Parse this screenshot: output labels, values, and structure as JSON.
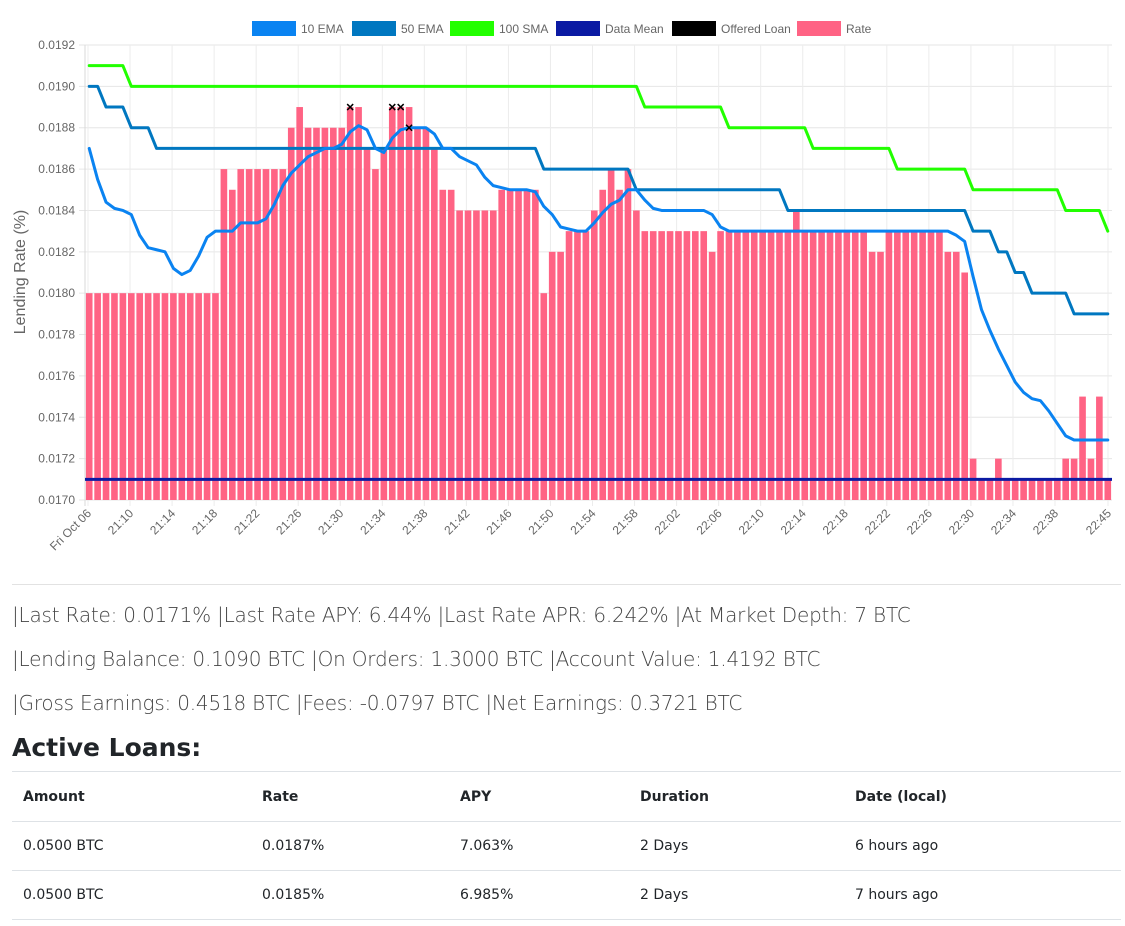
{
  "chart_data": {
    "type": "bar",
    "ylabel": "Lending Rate (%)",
    "ylim": [
      0.017,
      0.0192
    ],
    "yticks": [
      "0.0170",
      "0.0172",
      "0.0174",
      "0.0176",
      "0.0178",
      "0.0180",
      "0.0182",
      "0.0184",
      "0.0186",
      "0.0188",
      "0.0190",
      "0.0192"
    ],
    "x_tick_labels": [
      "Fri Oct 06",
      "21:10",
      "21:14",
      "21:18",
      "21:22",
      "21:26",
      "21:30",
      "21:34",
      "21:38",
      "21:42",
      "21:46",
      "21:50",
      "21:54",
      "21:58",
      "22:02",
      "22:06",
      "22:10",
      "22:14",
      "22:18",
      "22:22",
      "22:26",
      "22:30",
      "22:34",
      "22:38",
      "22:45"
    ],
    "grid": true,
    "legend_placement": "top",
    "legend": [
      {
        "label": "10 EMA",
        "color": "#0a83f1"
      },
      {
        "label": "50 EMA",
        "color": "#0077c0"
      },
      {
        "label": "100 SMA",
        "color": "#22ff00"
      },
      {
        "label": "Data Mean",
        "color": "#0b1aa3"
      },
      {
        "label": "Offered Loan",
        "color": "#000000"
      },
      {
        "label": "Rate",
        "color": "#ff6384"
      }
    ],
    "rate_values": [
      0.018,
      0.018,
      0.018,
      0.018,
      0.018,
      0.018,
      0.018,
      0.018,
      0.018,
      0.018,
      0.018,
      0.018,
      0.018,
      0.018,
      0.018,
      0.018,
      0.0186,
      0.0185,
      0.0186,
      0.0186,
      0.0186,
      0.0186,
      0.0186,
      0.0186,
      0.0188,
      0.0189,
      0.0188,
      0.0188,
      0.0188,
      0.0188,
      0.0188,
      0.0189,
      0.0189,
      0.0187,
      0.0186,
      0.0187,
      0.0189,
      0.0189,
      0.0189,
      0.0188,
      0.0188,
      0.0187,
      0.0185,
      0.0185,
      0.0184,
      0.0184,
      0.0184,
      0.0184,
      0.0184,
      0.0185,
      0.0185,
      0.0185,
      0.0185,
      0.0185,
      0.018,
      0.0182,
      0.0182,
      0.0183,
      0.0183,
      0.0183,
      0.0184,
      0.0185,
      0.0186,
      0.0185,
      0.0186,
      0.0184,
      0.0183,
      0.0183,
      0.0183,
      0.0183,
      0.0183,
      0.0183,
      0.0183,
      0.0183,
      0.0182,
      0.0183,
      0.0183,
      0.0183,
      0.0183,
      0.0183,
      0.0183,
      0.0183,
      0.0183,
      0.0183,
      0.0184,
      0.0183,
      0.0183,
      0.0183,
      0.0183,
      0.0183,
      0.0183,
      0.0183,
      0.0183,
      0.0182,
      0.0182,
      0.0183,
      0.0183,
      0.0183,
      0.0183,
      0.0183,
      0.0183,
      0.0183,
      0.0182,
      0.0182,
      0.0181,
      0.0172,
      0.0171,
      0.0171,
      0.0172,
      0.0171,
      0.0171,
      0.0171,
      0.0171,
      0.0171,
      0.0171,
      0.0171,
      0.0172,
      0.0172,
      0.0175,
      0.0172,
      0.0175,
      0.0171
    ],
    "ema10_values": [
      0.0187,
      0.01855,
      0.01844,
      0.01841,
      0.0184,
      0.01838,
      0.01828,
      0.01822,
      0.01821,
      0.0182,
      0.01812,
      0.01809,
      0.01811,
      0.01818,
      0.01827,
      0.0183,
      0.0183,
      0.0183,
      0.01834,
      0.01834,
      0.01834,
      0.01836,
      0.01843,
      0.01852,
      0.01858,
      0.01862,
      0.01866,
      0.01868,
      0.0187,
      0.0187,
      0.01872,
      0.01878,
      0.01881,
      0.01879,
      0.0187,
      0.01868,
      0.01875,
      0.01879,
      0.0188,
      0.0188,
      0.0188,
      0.01877,
      0.0187,
      0.0187,
      0.01866,
      0.01864,
      0.01862,
      0.01856,
      0.01852,
      0.01851,
      0.0185,
      0.0185,
      0.0185,
      0.01849,
      0.01842,
      0.01838,
      0.01832,
      0.01831,
      0.0183,
      0.0183,
      0.01834,
      0.01839,
      0.01843,
      0.01845,
      0.0185,
      0.0185,
      0.01845,
      0.01841,
      0.0184,
      0.0184,
      0.0184,
      0.0184,
      0.0184,
      0.0184,
      0.01838,
      0.01832,
      0.0183,
      0.0183,
      0.0183,
      0.0183,
      0.0183,
      0.0183,
      0.0183,
      0.0183,
      0.0183,
      0.0183,
      0.0183,
      0.0183,
      0.0183,
      0.0183,
      0.0183,
      0.0183,
      0.0183,
      0.0183,
      0.0183,
      0.0183,
      0.0183,
      0.0183,
      0.0183,
      0.0183,
      0.0183,
      0.0183,
      0.0183,
      0.01828,
      0.01825,
      0.01808,
      0.01792,
      0.01782,
      0.01773,
      0.01765,
      0.01757,
      0.01752,
      0.01749,
      0.01748,
      0.01743,
      0.01737,
      0.01731,
      0.01729,
      0.01729,
      0.01729,
      0.01729,
      0.01729
    ],
    "ema50_values": [
      0.019,
      0.019,
      0.0189,
      0.0189,
      0.0189,
      0.0188,
      0.0188,
      0.0188,
      0.0187,
      0.0187,
      0.0187,
      0.0187,
      0.0187,
      0.0187,
      0.0187,
      0.0187,
      0.0187,
      0.0187,
      0.0187,
      0.0187,
      0.0187,
      0.0187,
      0.0187,
      0.0187,
      0.0187,
      0.0187,
      0.0187,
      0.0187,
      0.0187,
      0.0187,
      0.0187,
      0.0187,
      0.0187,
      0.0187,
      0.0187,
      0.0187,
      0.0187,
      0.0187,
      0.0187,
      0.0187,
      0.0187,
      0.0187,
      0.0187,
      0.0187,
      0.0187,
      0.0187,
      0.0187,
      0.0187,
      0.0187,
      0.0187,
      0.0187,
      0.0187,
      0.0187,
      0.0187,
      0.0186,
      0.0186,
      0.0186,
      0.0186,
      0.0186,
      0.0186,
      0.0186,
      0.0186,
      0.0186,
      0.0186,
      0.0186,
      0.0185,
      0.0185,
      0.0185,
      0.0185,
      0.0185,
      0.0185,
      0.0185,
      0.0185,
      0.0185,
      0.0185,
      0.0185,
      0.0185,
      0.0185,
      0.0185,
      0.0185,
      0.0185,
      0.0185,
      0.0185,
      0.0184,
      0.0184,
      0.0184,
      0.0184,
      0.0184,
      0.0184,
      0.0184,
      0.0184,
      0.0184,
      0.0184,
      0.0184,
      0.0184,
      0.0184,
      0.0184,
      0.0184,
      0.0184,
      0.0184,
      0.0184,
      0.0184,
      0.0184,
      0.0184,
      0.0184,
      0.0183,
      0.0183,
      0.0183,
      0.0182,
      0.0182,
      0.0181,
      0.0181,
      0.018,
      0.018,
      0.018,
      0.018,
      0.018,
      0.0179,
      0.0179,
      0.0179,
      0.0179,
      0.0179
    ],
    "sma100_values": [
      0.0191,
      0.0191,
      0.0191,
      0.0191,
      0.0191,
      0.019,
      0.019,
      0.019,
      0.019,
      0.019,
      0.019,
      0.019,
      0.019,
      0.019,
      0.019,
      0.019,
      0.019,
      0.019,
      0.019,
      0.019,
      0.019,
      0.019,
      0.019,
      0.019,
      0.019,
      0.019,
      0.019,
      0.019,
      0.019,
      0.019,
      0.019,
      0.019,
      0.019,
      0.019,
      0.019,
      0.019,
      0.019,
      0.019,
      0.019,
      0.019,
      0.019,
      0.019,
      0.019,
      0.019,
      0.019,
      0.019,
      0.019,
      0.019,
      0.019,
      0.019,
      0.019,
      0.019,
      0.019,
      0.019,
      0.019,
      0.019,
      0.019,
      0.019,
      0.019,
      0.019,
      0.019,
      0.019,
      0.019,
      0.019,
      0.019,
      0.019,
      0.0189,
      0.0189,
      0.0189,
      0.0189,
      0.0189,
      0.0189,
      0.0189,
      0.0189,
      0.0189,
      0.0189,
      0.0188,
      0.0188,
      0.0188,
      0.0188,
      0.0188,
      0.0188,
      0.0188,
      0.0188,
      0.0188,
      0.0188,
      0.0187,
      0.0187,
      0.0187,
      0.0187,
      0.0187,
      0.0187,
      0.0187,
      0.0187,
      0.0187,
      0.0187,
      0.0186,
      0.0186,
      0.0186,
      0.0186,
      0.0186,
      0.0186,
      0.0186,
      0.0186,
      0.0186,
      0.0185,
      0.0185,
      0.0185,
      0.0185,
      0.0185,
      0.0185,
      0.0185,
      0.0185,
      0.0185,
      0.0185,
      0.0185,
      0.0184,
      0.0184,
      0.0184,
      0.0184,
      0.0184,
      0.0183
    ],
    "data_mean": 0.0171,
    "offered_loans": [
      {
        "x_index": 31,
        "value": 0.0189
      },
      {
        "x_index": 36,
        "value": 0.0189
      },
      {
        "x_index": 37,
        "value": 0.0189
      },
      {
        "x_index": 38,
        "value": 0.0188
      }
    ]
  },
  "stats": {
    "line1": "|Last Rate: 0.0171% |Last Rate APY: 6.44% |Last Rate APR: 6.242% |At Market Depth: 7 BTC",
    "line2": "|Lending Balance: 0.1090 BTC |On Orders: 1.3000 BTC |Account Value: 1.4192 BTC",
    "line3": "|Gross Earnings: 0.4518 BTC |Fees: -0.0797 BTC |Net Earnings: 0.3721 BTC"
  },
  "active_loans": {
    "title": "Active Loans:",
    "columns": [
      "Amount",
      "Rate",
      "APY",
      "Duration",
      "Date (local)"
    ],
    "rows": [
      [
        "0.0500 BTC",
        "0.0187%",
        "7.063%",
        "2 Days",
        "6 hours ago"
      ],
      [
        "0.0500 BTC",
        "0.0185%",
        "6.985%",
        "2 Days",
        "7 hours ago"
      ]
    ]
  }
}
